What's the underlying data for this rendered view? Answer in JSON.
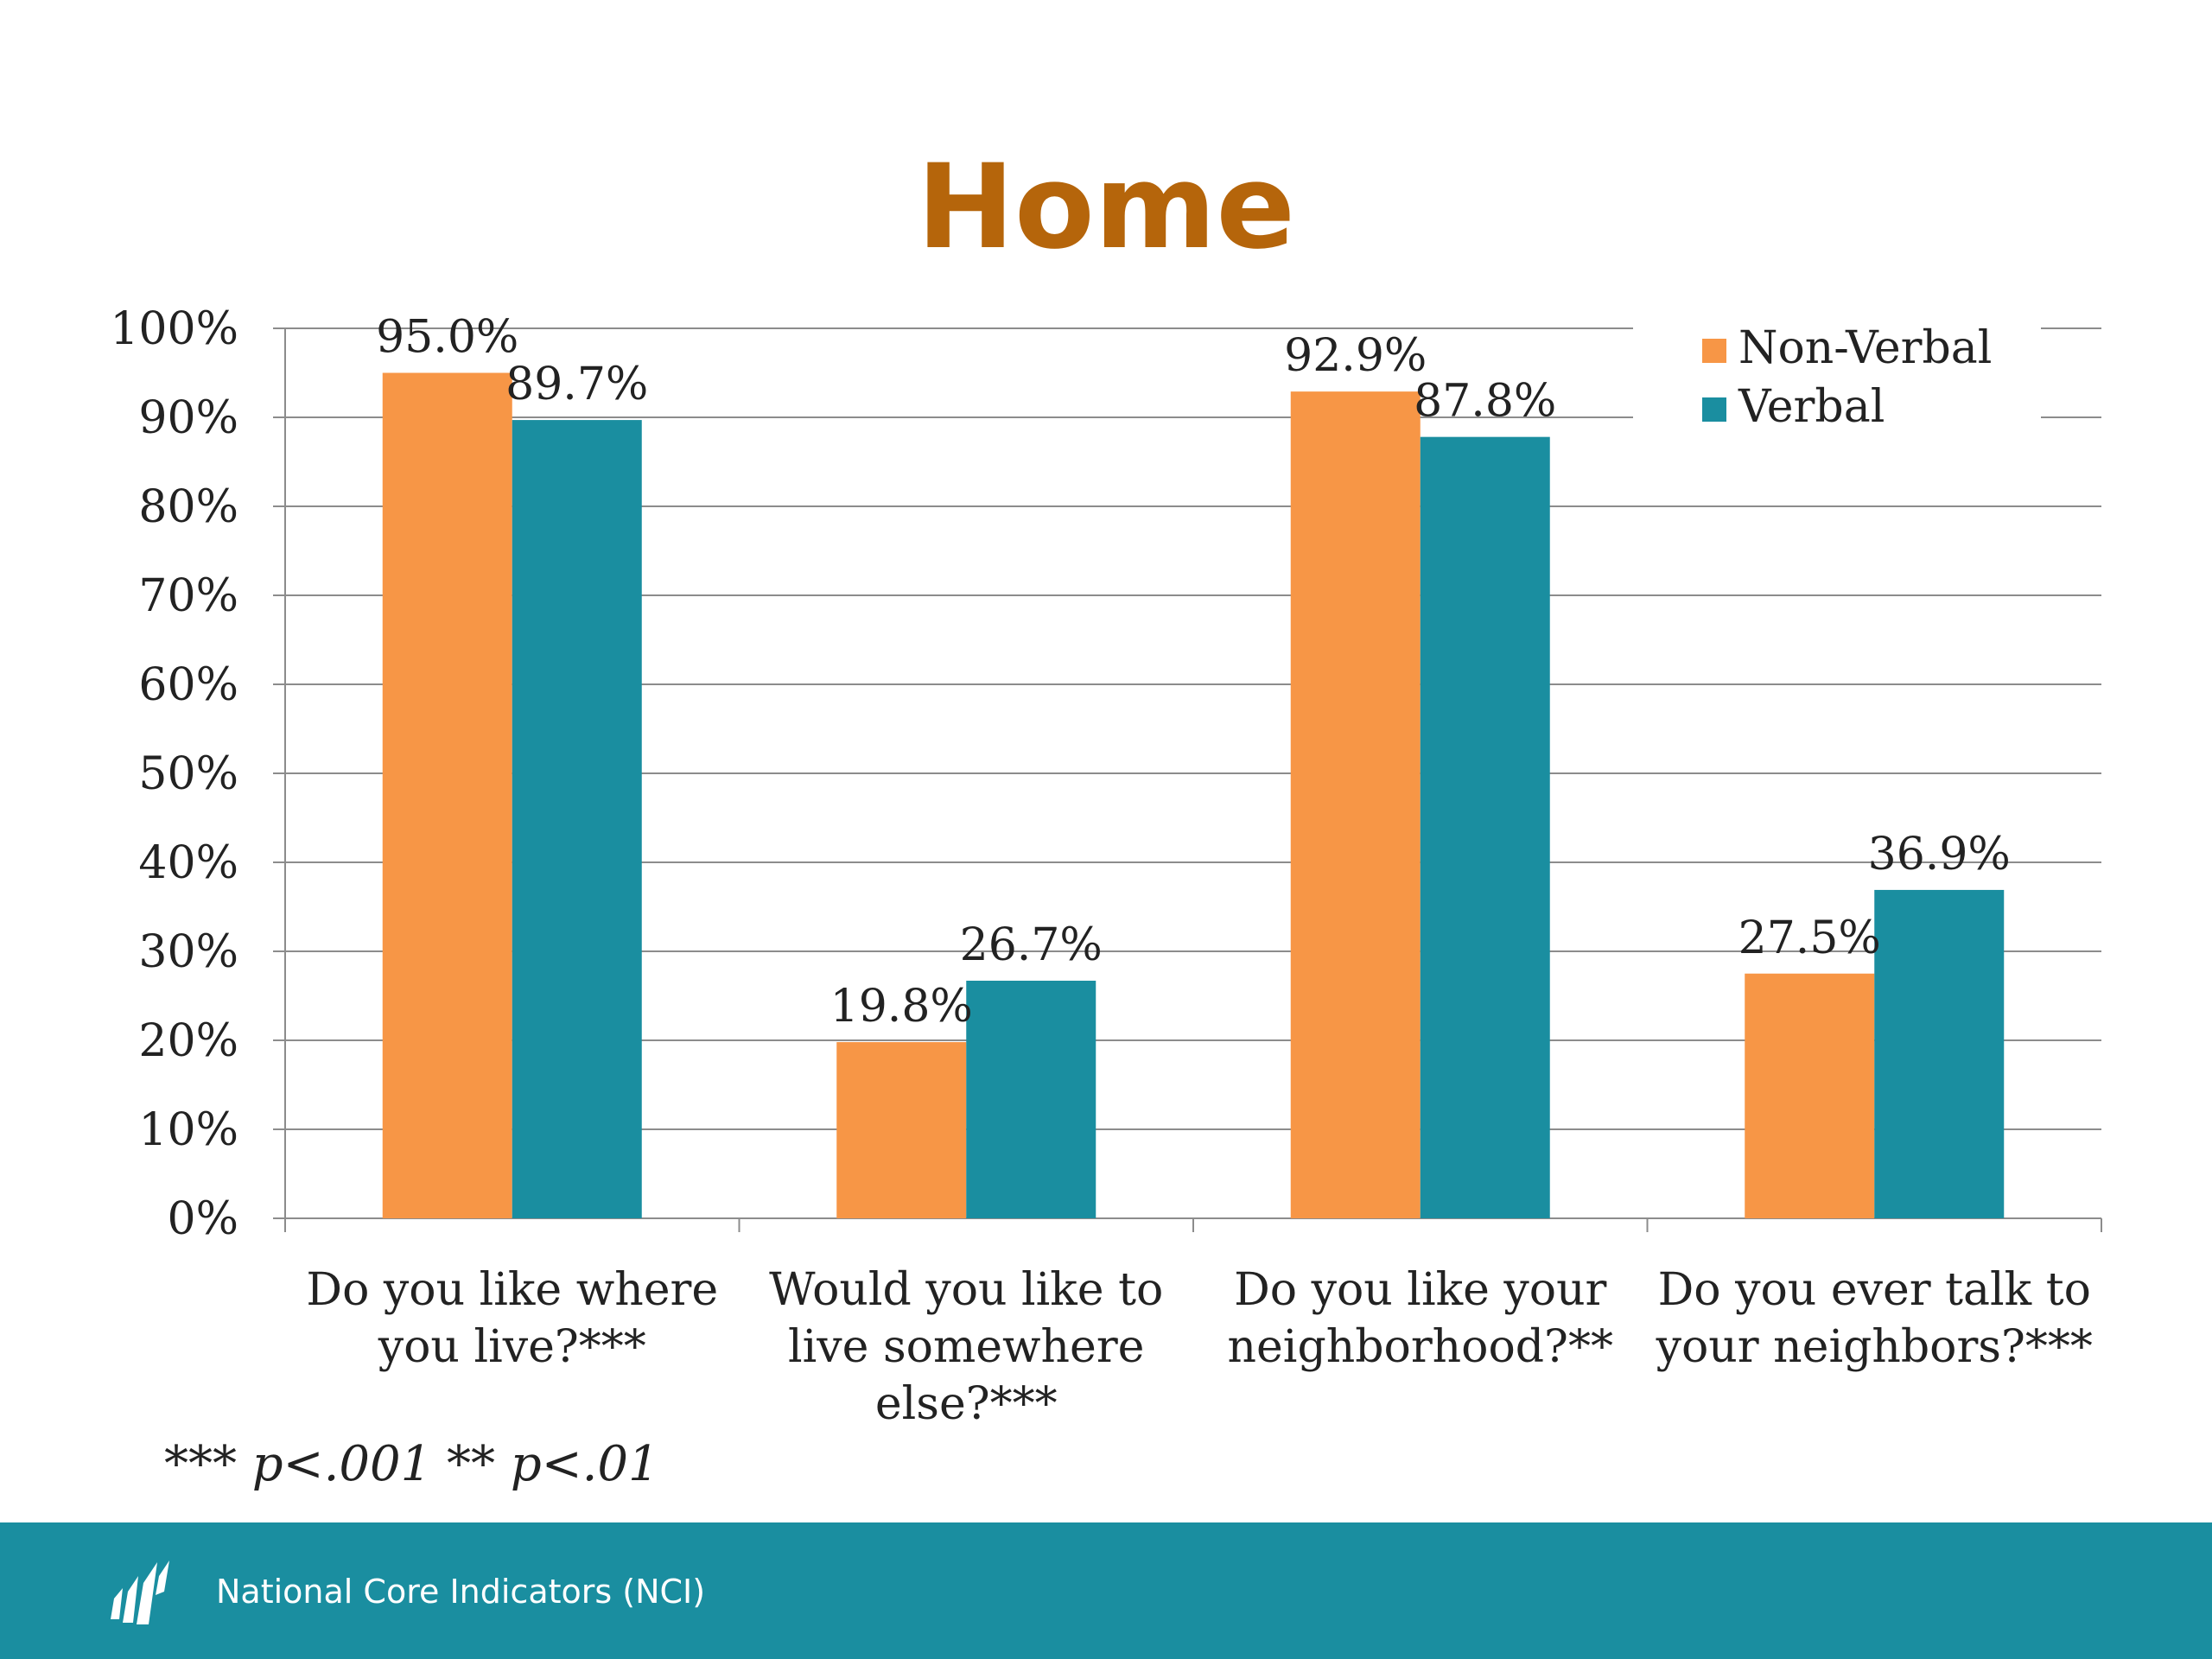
{
  "slide": {
    "title": "Home",
    "footnote": "*** p<.001 ** p<.01",
    "footer_text": "National Core Indicators (NCI)"
  },
  "colors": {
    "title": "#b5650b",
    "non_verbal": "#f79646",
    "verbal": "#1a8ea0",
    "footer_bg": "#1a8ea0",
    "gridline": "#8c8c8c",
    "text": "#222222"
  },
  "chart_data": {
    "type": "bar",
    "title": "Home",
    "categories": [
      [
        "Do you like where",
        "you live?***"
      ],
      [
        "Would you like to",
        "live somewhere",
        "else?***"
      ],
      [
        "Do you like your",
        "neighborhood?**"
      ],
      [
        "Do you ever talk to",
        "your neighbors?***"
      ]
    ],
    "series": [
      {
        "name": "Non-Verbal",
        "color": "#f79646",
        "values": [
          95.0,
          19.8,
          92.9,
          27.5
        ],
        "labels": [
          "95.0%",
          "19.8%",
          "92.9%",
          "27.5%"
        ]
      },
      {
        "name": "Verbal",
        "color": "#1a8ea0",
        "values": [
          89.7,
          26.7,
          87.8,
          36.9
        ],
        "labels": [
          "89.7%",
          "26.7%",
          "87.8%",
          "36.9%"
        ]
      }
    ],
    "ylim": [
      0,
      100
    ],
    "yticks": [
      "0%",
      "10%",
      "20%",
      "30%",
      "40%",
      "50%",
      "60%",
      "70%",
      "80%",
      "90%",
      "100%"
    ],
    "grid": true,
    "legend_position": "top-right"
  }
}
